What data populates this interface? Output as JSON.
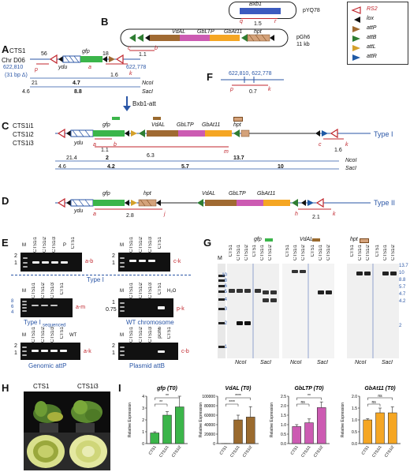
{
  "panels": {
    "A": "A",
    "B": "B",
    "C": "C",
    "D": "D",
    "E": "E",
    "F": "F",
    "G": "G",
    "H": "H",
    "I": "I"
  },
  "panelB": {
    "plasmid1": "pYQ78",
    "bxb1": "Bxb1",
    "q": "q",
    "r": "r",
    "n15": "1.5",
    "plasmid2": "pGh6",
    "kb11": "11 kb",
    "vdal": "VdAL",
    "gbltp": "GbLTP",
    "gbat11": "GbAt11",
    "hpt": "hpt",
    "c": "c",
    "b": "b",
    "n11": "1.1"
  },
  "legend": {
    "rs2": "RS2",
    "lox": "lox",
    "attP": "attP",
    "attB": "attB",
    "attL": "attL",
    "attR": "attR"
  },
  "panelA": {
    "cts1": "CTS1",
    "chr": "Chr D06",
    "n56": "56",
    "n18": "18",
    "gfp": "gfp",
    "ydu": "ydu",
    "p622810": "622,810",
    "p622778": "622,778",
    "p": "p",
    "k": "k",
    "a": "a",
    "bp31": "(31 bp Δ)",
    "n16": "1.6",
    "n21": "21",
    "n47": "4.7",
    "ncoi": "NcoI",
    "n46": "4.6",
    "n88": "8.8",
    "saci": "SacI"
  },
  "panelF": {
    "p1": "622,810",
    "p2": "622,778",
    "p": "p",
    "k": "k",
    "n07": "0.7"
  },
  "panelC": {
    "l1": "CTS1i1",
    "l2": "CTS1i2",
    "l3": "CTS1i3",
    "arrow": "Bxb1-att",
    "gfp": "gfp",
    "ydu": "ydu",
    "vdal": "VdAL",
    "gbltp": "GbLTP",
    "gbat11": "GbAt11",
    "hpt": "hpt",
    "a": "a",
    "b": "b",
    "c": "c",
    "k": "k",
    "m": "m",
    "n11": "1.1",
    "n16": "1.6",
    "n63": "6.3",
    "n214": "21.4",
    "n2": "2",
    "n137": "13.7",
    "n46": "4.6",
    "n42": "4.2",
    "n57": "5.7",
    "n10": "10",
    "ncoi": "NcoI",
    "saci": "SacI",
    "type": "Type I"
  },
  "panelD": {
    "gfp": "gfp",
    "ydu": "ydu",
    "hpt": "hpt",
    "vdal": "VdAL",
    "gbltp": "GbLTP",
    "gbat11": "GbAt11",
    "a": "a",
    "j": "j",
    "h": "h",
    "k": "k",
    "n28": "2.8",
    "n21": "2.1",
    "type": "Type II"
  },
  "panelE": {
    "gel1": {
      "lanes": [
        "M",
        "CTS1i1",
        "CTS1i2",
        "CTS1i3",
        "P",
        "CTS1"
      ],
      "tag": "a-b",
      "y2": "2",
      "y1": "1"
    },
    "gel2": {
      "lanes": [
        "M",
        "CTS1i1",
        "CTS1i2",
        "CTS1i3",
        "CTS1"
      ],
      "tag": "c-k",
      "y2": "2",
      "y1": "1"
    },
    "typeI": "Type I",
    "gel3": {
      "lanes": [
        "M",
        "CTS1i1",
        "CTS1i2",
        "CTS1i3",
        "CTS1"
      ],
      "tag": "a-m",
      "ticks": [
        "8",
        "6",
        "4"
      ],
      "caption": "Type I",
      "sub": "sequenced"
    },
    "gel4": {
      "lanes": [
        "M",
        "CTS1i1",
        "CTS1i2",
        "CTS1i3",
        "CTS1",
        "H₂O"
      ],
      "tag": "p-k",
      "y1": "1",
      "y075": "0.75",
      "caption": "WT chromosome"
    },
    "gel5": {
      "lanes": [
        "M",
        "CTS1i1",
        "CTS1i2",
        "CTS1i3",
        "CTS1",
        "WT"
      ],
      "tag": "a-k",
      "y2": "2",
      "y1": "1",
      "caption": "Genomic attP"
    },
    "gel6": {
      "lanes": [
        "M",
        "CTS1i1",
        "CTS1i2",
        "CTS1i3",
        "pGh6",
        "CTS1"
      ],
      "tag": "c-b",
      "y2": "2",
      "y1": "1",
      "caption": "Plasmid attB"
    }
  },
  "panelG": {
    "probe1": "gfp",
    "probe2": "VdAL",
    "probe3": "hpt",
    "lanes": [
      "CTS1",
      "CTS1i1",
      "CTS1i2",
      "CTS1",
      "CTS1i1",
      "CTS1i2"
    ],
    "m": "M",
    "lticks": [
      "10",
      "8",
      "6",
      "5",
      "4",
      "3",
      "2",
      "1"
    ],
    "rticks": [
      "13.7",
      "10",
      "8.8",
      "5.7",
      "4.7",
      "4.2",
      "2"
    ],
    "ncoi": "NcoI",
    "saci": "SacI"
  },
  "panelH": {
    "l1": "CTS1",
    "l2": "CTS1i3"
  },
  "panelI": {
    "charts": [
      {
        "title": "gfp (T0)",
        "ylabel": "Relative Expression",
        "ticks": [
          "0",
          "1",
          "2",
          "3",
          "4"
        ],
        "categories": [
          "CTS1",
          "CTS1i1",
          "CTS1i2"
        ],
        "color": "#3bb54a",
        "sig": [
          "**",
          "**"
        ]
      },
      {
        "title": "VdAL (T0)",
        "ylabel": "Relative Expression",
        "ticks": [
          "0",
          "20000",
          "40000",
          "60000",
          "80000",
          "100000"
        ],
        "categories": [
          "CTS1",
          "CTS1i1",
          "CTS1i2"
        ],
        "color": "#9a6a2e",
        "sig": [
          "****",
          "****"
        ]
      },
      {
        "title": "GbLTP (T0)",
        "ylabel": "Relative Expression",
        "ticks": [
          "0.0",
          "0.5",
          "1.0",
          "1.5",
          "2.0",
          "2.5"
        ],
        "categories": [
          "CTS1",
          "CTS1i1",
          "CTS1i2"
        ],
        "color": "#cc5bb2",
        "sig": [
          "ns",
          "**"
        ]
      },
      {
        "title": "GbAt11 (T0)",
        "ylabel": "Relative Expression",
        "ticks": [
          "0.0",
          "0.5",
          "1.0",
          "1.5",
          "2.0"
        ],
        "categories": [
          "CTS1",
          "CTS1i1",
          "CTS1i2"
        ],
        "color": "#f5a623",
        "sig": [
          "ns",
          "ns"
        ]
      }
    ]
  },
  "chart_data": [
    {
      "type": "bar",
      "title": "gfp (T0)",
      "ylabel": "Relative Expression",
      "categories": [
        "CTS1",
        "CTS1i1",
        "CTS1i2"
      ],
      "values": [
        0.9,
        2.4,
        3.1
      ],
      "errors": [
        0.1,
        0.3,
        0.9
      ],
      "ylim": [
        0,
        4
      ]
    },
    {
      "type": "bar",
      "title": "VdAL (T0)",
      "ylabel": "Relative Expression",
      "categories": [
        "CTS1",
        "CTS1i1",
        "CTS1i2"
      ],
      "values": [
        200,
        50000,
        56000
      ],
      "errors": [
        50,
        10000,
        22000
      ],
      "ylim": [
        0,
        100000
      ]
    },
    {
      "type": "bar",
      "title": "GbLTP (T0)",
      "ylabel": "Relative Expression",
      "categories": [
        "CTS1",
        "CTS1i1",
        "CTS1i2"
      ],
      "values": [
        0.9,
        1.1,
        1.9
      ],
      "errors": [
        0.1,
        0.2,
        0.3
      ],
      "ylim": [
        0,
        2.5
      ]
    },
    {
      "type": "bar",
      "title": "GbAt11 (T0)",
      "ylabel": "Relative Expression",
      "categories": [
        "CTS1",
        "CTS1i1",
        "CTS1i2"
      ],
      "values": [
        1.0,
        1.3,
        1.3
      ],
      "errors": [
        0.05,
        0.2,
        0.25
      ],
      "ylim": [
        0,
        2
      ]
    }
  ]
}
